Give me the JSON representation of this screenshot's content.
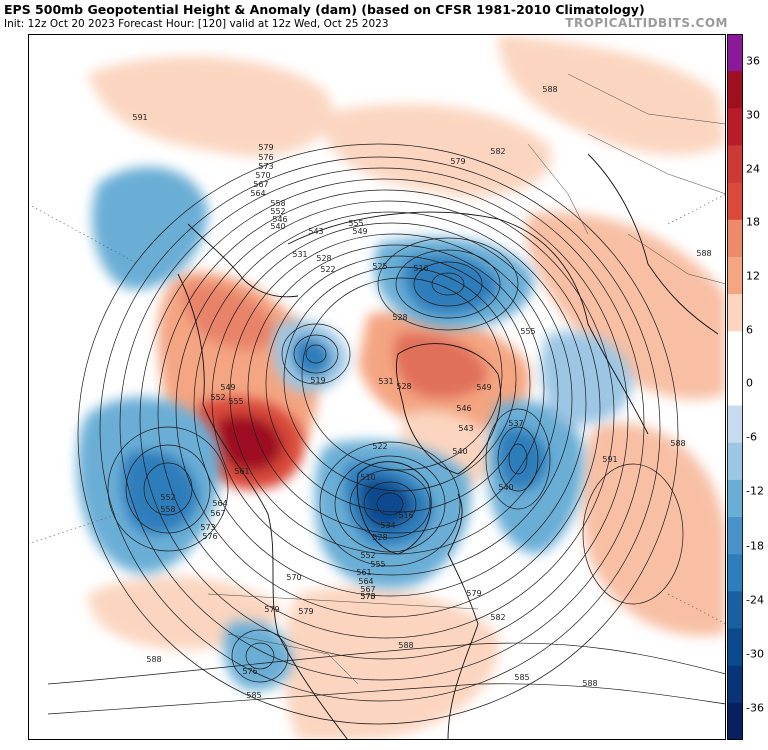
{
  "header": {
    "title": "EPS 500mb Geopotential Height & Anomaly (dam) (based on CFSR 1981-2010 Climatology)",
    "subtitle": "Init: 12z Oct 20 2023   Forecast Hour: [120]   valid at 12z Wed, Oct 25 2023",
    "credit": "TROPICALTIDBITS.COM"
  },
  "colorbar": {
    "ticks": [
      "36",
      "30",
      "24",
      "18",
      "12",
      "6",
      "0",
      "-6",
      "-12",
      "-18",
      "-24",
      "-30",
      "-36"
    ],
    "colors": {
      "top": "#8a1a9a",
      "dark_red": "#9e1020",
      "red": "#d94a3a",
      "salmon": "#f4a582",
      "light_salmon": "#fbd5c0",
      "white": "#ffffff",
      "light_blue": "#c6dbef",
      "blue": "#6aaed6",
      "mid_blue": "#2f7dbb",
      "dark_blue": "#0b4a8e",
      "navy": "#08205e"
    }
  },
  "contour_labels": [
    {
      "text": "591",
      "region": "north-pacific-west"
    },
    {
      "text": "588",
      "region": "europe-north"
    },
    {
      "text": "582",
      "region": "russia"
    },
    {
      "text": "579",
      "region": "siberia"
    },
    {
      "text": "588",
      "region": "asia-east"
    },
    {
      "text": "579",
      "region": "alaska-west"
    },
    {
      "text": "576",
      "region": "alaska-west"
    },
    {
      "text": "573",
      "region": "alaska-west"
    },
    {
      "text": "570",
      "region": "alaska-west"
    },
    {
      "text": "567",
      "region": "alaska-west"
    },
    {
      "text": "564",
      "region": "alaska-west"
    },
    {
      "text": "558",
      "region": "alaska"
    },
    {
      "text": "552",
      "region": "alaska"
    },
    {
      "text": "546",
      "region": "alaska"
    },
    {
      "text": "540",
      "region": "chukchi"
    },
    {
      "text": "543",
      "region": "east-siberian-sea"
    },
    {
      "text": "555",
      "region": "laptev-sea"
    },
    {
      "text": "549",
      "region": "laptev-sea"
    },
    {
      "text": "531",
      "region": "arctic-ocean"
    },
    {
      "text": "528",
      "region": "arctic-ocean"
    },
    {
      "text": "522",
      "region": "arctic-ocean"
    },
    {
      "text": "525",
      "region": "kara-sea"
    },
    {
      "text": "516",
      "region": "kara-sea"
    },
    {
      "text": "528",
      "region": "svalbard"
    },
    {
      "text": "555",
      "region": "scandinavia"
    },
    {
      "text": "519",
      "region": "beaufort-sea"
    },
    {
      "text": "531",
      "region": "greenland-north"
    },
    {
      "text": "528",
      "region": "greenland-north"
    },
    {
      "text": "549",
      "region": "greenland-east"
    },
    {
      "text": "546",
      "region": "iceland"
    },
    {
      "text": "543",
      "region": "iceland"
    },
    {
      "text": "540",
      "region": "iceland"
    },
    {
      "text": "537",
      "region": "north-atlantic"
    },
    {
      "text": "540",
      "region": "north-atlantic"
    },
    {
      "text": "549",
      "region": "gulf-of-alaska"
    },
    {
      "text": "552",
      "region": "gulf-of-alaska"
    },
    {
      "text": "555",
      "region": "gulf-of-alaska"
    },
    {
      "text": "561",
      "region": "british-columbia"
    },
    {
      "text": "552",
      "region": "north-pacific"
    },
    {
      "text": "558",
      "region": "north-pacific"
    },
    {
      "text": "564",
      "region": "north-pacific"
    },
    {
      "text": "567",
      "region": "north-pacific"
    },
    {
      "text": "573",
      "region": "north-pacific"
    },
    {
      "text": "576",
      "region": "north-pacific"
    },
    {
      "text": "522",
      "region": "hudson-bay"
    },
    {
      "text": "510",
      "region": "hudson-bay"
    },
    {
      "text": "516",
      "region": "hudson-bay"
    },
    {
      "text": "528",
      "region": "ontario"
    },
    {
      "text": "534",
      "region": "ontario"
    },
    {
      "text": "552",
      "region": "great-lakes"
    },
    {
      "text": "555",
      "region": "great-lakes"
    },
    {
      "text": "561",
      "region": "great-lakes"
    },
    {
      "text": "564",
      "region": "great-lakes"
    },
    {
      "text": "567",
      "region": "great-lakes"
    },
    {
      "text": "570",
      "region": "great-lakes"
    },
    {
      "text": "573",
      "region": "great-lakes"
    },
    {
      "text": "570",
      "region": "northern-plains"
    },
    {
      "text": "579",
      "region": "western-us"
    },
    {
      "text": "579",
      "region": "western-us"
    },
    {
      "text": "582",
      "region": "eastern-us"
    },
    {
      "text": "579",
      "region": "atlantic"
    },
    {
      "text": "576",
      "region": "gulf-of-california"
    },
    {
      "text": "585",
      "region": "mexico"
    },
    {
      "text": "588",
      "region": "pacific-south"
    },
    {
      "text": "588",
      "region": "gulf-of-mexico"
    },
    {
      "text": "585",
      "region": "caribbean"
    },
    {
      "text": "588",
      "region": "atlantic-south"
    },
    {
      "text": "591",
      "region": "azores"
    },
    {
      "text": "588",
      "region": "west-africa"
    }
  ]
}
